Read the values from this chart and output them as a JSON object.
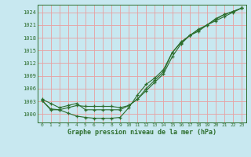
{
  "title": "Graphe pression niveau de la mer (hPa)",
  "background_color": "#c8e8f0",
  "grid_color_v": "#e8b0b0",
  "grid_color_h": "#e8b0b0",
  "line_color": "#2d6e2d",
  "xlim": [
    -0.5,
    23.5
  ],
  "ylim": [
    998.0,
    1025.8
  ],
  "yticks": [
    1000,
    1003,
    1006,
    1009,
    1012,
    1015,
    1018,
    1021,
    1024
  ],
  "xticks": [
    0,
    1,
    2,
    3,
    4,
    5,
    6,
    7,
    8,
    9,
    10,
    11,
    12,
    13,
    14,
    15,
    16,
    17,
    18,
    19,
    20,
    21,
    22,
    23
  ],
  "series1": [
    1003.2,
    1001.2,
    1001.0,
    1001.5,
    1002.0,
    1001.8,
    1001.8,
    1001.8,
    1001.8,
    1001.5,
    1002.0,
    1003.5,
    1005.5,
    1007.5,
    1009.5,
    1013.5,
    1016.5,
    1018.5,
    1019.5,
    1021.0,
    1022.5,
    1023.5,
    1024.2,
    1025.0
  ],
  "series2": [
    1003.2,
    1001.0,
    1001.0,
    1000.2,
    999.5,
    999.2,
    999.0,
    999.0,
    999.0,
    999.2,
    1001.5,
    1004.5,
    1007.0,
    1008.5,
    1010.5,
    1014.5,
    1017.0,
    1018.5,
    1020.0,
    1021.0,
    1022.0,
    1023.0,
    1024.0,
    1025.0
  ],
  "series3": [
    1003.5,
    1002.5,
    1001.5,
    1002.0,
    1002.5,
    1001.0,
    1001.0,
    1001.0,
    1001.0,
    1001.0,
    1002.0,
    1003.5,
    1006.0,
    1008.0,
    1010.0,
    1014.5,
    1016.8,
    1018.5,
    1019.8,
    1021.0,
    1022.3,
    1023.5,
    1024.2,
    1025.0
  ]
}
